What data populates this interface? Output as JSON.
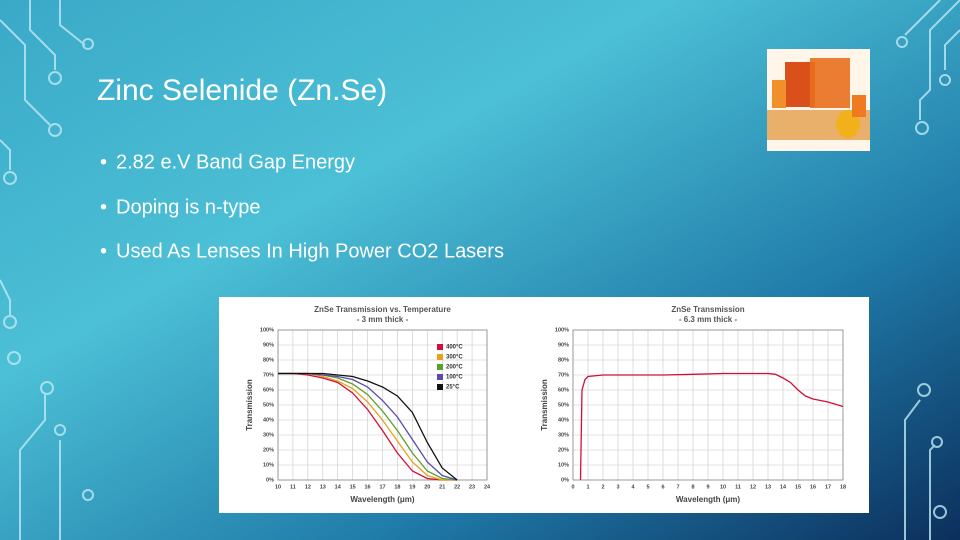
{
  "slide": {
    "title": "Zinc Selenide (Zn.Se)",
    "bullets": [
      "2.82 e.V Band Gap Energy",
      "Doping is n-type",
      "Used As Lenses In High Power CO2 Lasers"
    ]
  },
  "chart_data": [
    {
      "type": "line",
      "title": "ZnSe Transmission vs. Temperature",
      "subtitle": "- 3 mm thick -",
      "x_label": "Wavelength (μm)",
      "y_label": "Transmission",
      "x": [
        10,
        11,
        12,
        13,
        14,
        15,
        16,
        17,
        18,
        19,
        20,
        21,
        22
      ],
      "series": [
        {
          "name": "400°C",
          "color": "#d0103a",
          "values": [
            71,
            71,
            70,
            68,
            65,
            58,
            47,
            33,
            18,
            6,
            1,
            0,
            0
          ]
        },
        {
          "name": "300°C",
          "color": "#e8a21a",
          "values": [
            71,
            71,
            71,
            69,
            66,
            61,
            52,
            40,
            26,
            12,
            3,
            0,
            0
          ]
        },
        {
          "name": "200°C",
          "color": "#5aa02c",
          "values": [
            71,
            71,
            71,
            70,
            68,
            64,
            57,
            46,
            33,
            18,
            6,
            1,
            0
          ]
        },
        {
          "name": "100°C",
          "color": "#5b4aa8",
          "values": [
            71,
            71,
            71,
            70,
            69,
            67,
            62,
            53,
            42,
            27,
            12,
            3,
            0
          ]
        },
        {
          "name": "25°C",
          "color": "#111111",
          "values": [
            71,
            71,
            71,
            71,
            70,
            69,
            66,
            62,
            56,
            45,
            25,
            8,
            0
          ]
        }
      ],
      "xlim": [
        10,
        24
      ],
      "xticks": [
        10,
        11,
        12,
        13,
        14,
        15,
        16,
        17,
        18,
        19,
        20,
        21,
        22,
        23,
        24
      ],
      "ylim": [
        0,
        100
      ],
      "yticks": [
        {
          "value": 0,
          "label": "0%"
        },
        {
          "value": 10,
          "label": "10%"
        },
        {
          "value": 20,
          "label": "20%"
        },
        {
          "value": 30,
          "label": "30%"
        },
        {
          "value": 40,
          "label": "40%"
        },
        {
          "value": 50,
          "label": "50%"
        },
        {
          "value": 60,
          "label": "60%"
        },
        {
          "value": 70,
          "label": "70%"
        },
        {
          "value": 80,
          "label": "80%"
        },
        {
          "value": 90,
          "label": "90%"
        },
        {
          "value": 100,
          "label": "100%"
        }
      ],
      "grid": true,
      "legend": "upper right"
    },
    {
      "type": "line",
      "title": "ZnSe Transmission",
      "subtitle": "- 6.3 mm thick -",
      "x_label": "Wavelength (μm)",
      "y_label": "Transmission",
      "x": [
        0.5,
        0.6,
        0.8,
        1,
        2,
        4,
        6,
        8,
        10,
        12,
        13,
        13.5,
        14,
        14.5,
        15,
        15.5,
        16,
        17,
        18
      ],
      "series": [
        {
          "color": "#d0103a",
          "values": [
            0,
            60,
            67,
            69,
            70,
            70,
            70,
            70.5,
            71,
            71,
            71,
            70.5,
            68,
            65,
            60,
            56,
            54,
            52,
            49
          ]
        }
      ],
      "xlim": [
        0,
        18
      ],
      "xticks": [
        0,
        1,
        2,
        3,
        4,
        5,
        6,
        7,
        8,
        9,
        10,
        11,
        12,
        13,
        14,
        15,
        16,
        17,
        18
      ],
      "ylim": [
        0,
        100
      ],
      "yticks": [
        {
          "value": 0,
          "label": "0%"
        },
        {
          "value": 10,
          "label": "10%"
        },
        {
          "value": 20,
          "label": "20%"
        },
        {
          "value": 30,
          "label": "30%"
        },
        {
          "value": 40,
          "label": "40%"
        },
        {
          "value": 50,
          "label": "50%"
        },
        {
          "value": 60,
          "label": "60%"
        },
        {
          "value": 70,
          "label": "70%"
        },
        {
          "value": 80,
          "label": "80%"
        },
        {
          "value": 90,
          "label": "90%"
        },
        {
          "value": 100,
          "label": "100%"
        }
      ],
      "grid": true
    }
  ]
}
